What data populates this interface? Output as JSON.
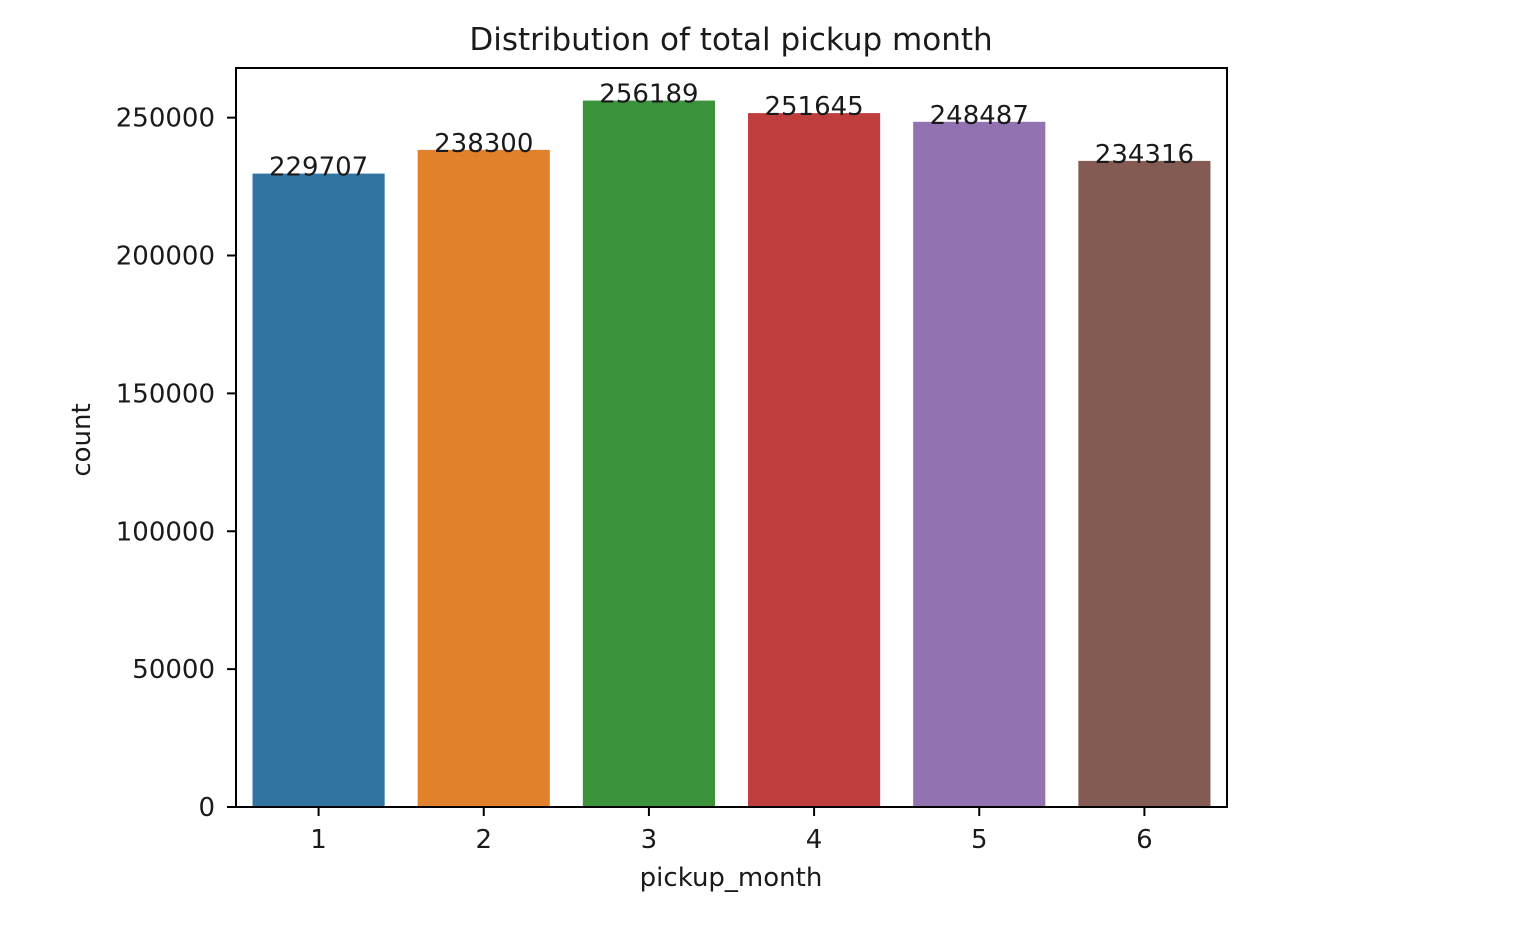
{
  "chart_data": {
    "type": "bar",
    "title": "Distribution of total pickup month",
    "xlabel": "pickup_month",
    "ylabel": "count",
    "categories": [
      "1",
      "2",
      "3",
      "4",
      "5",
      "6"
    ],
    "values": [
      229707,
      238300,
      256189,
      251645,
      248487,
      234316
    ],
    "data_labels": [
      "229707",
      "238300",
      "256189",
      "251645",
      "248487",
      "234316"
    ],
    "colors": [
      "#3274a1",
      "#e1812c",
      "#3a923a",
      "#c03d3e",
      "#9372b2",
      "#845b53"
    ],
    "ylim": [
      0,
      268000
    ],
    "yticks": [
      0,
      50000,
      100000,
      150000,
      200000,
      250000
    ],
    "ytick_labels": [
      "0",
      "50000",
      "100000",
      "150000",
      "200000",
      "250000"
    ],
    "grid": false,
    "legend": "none"
  }
}
